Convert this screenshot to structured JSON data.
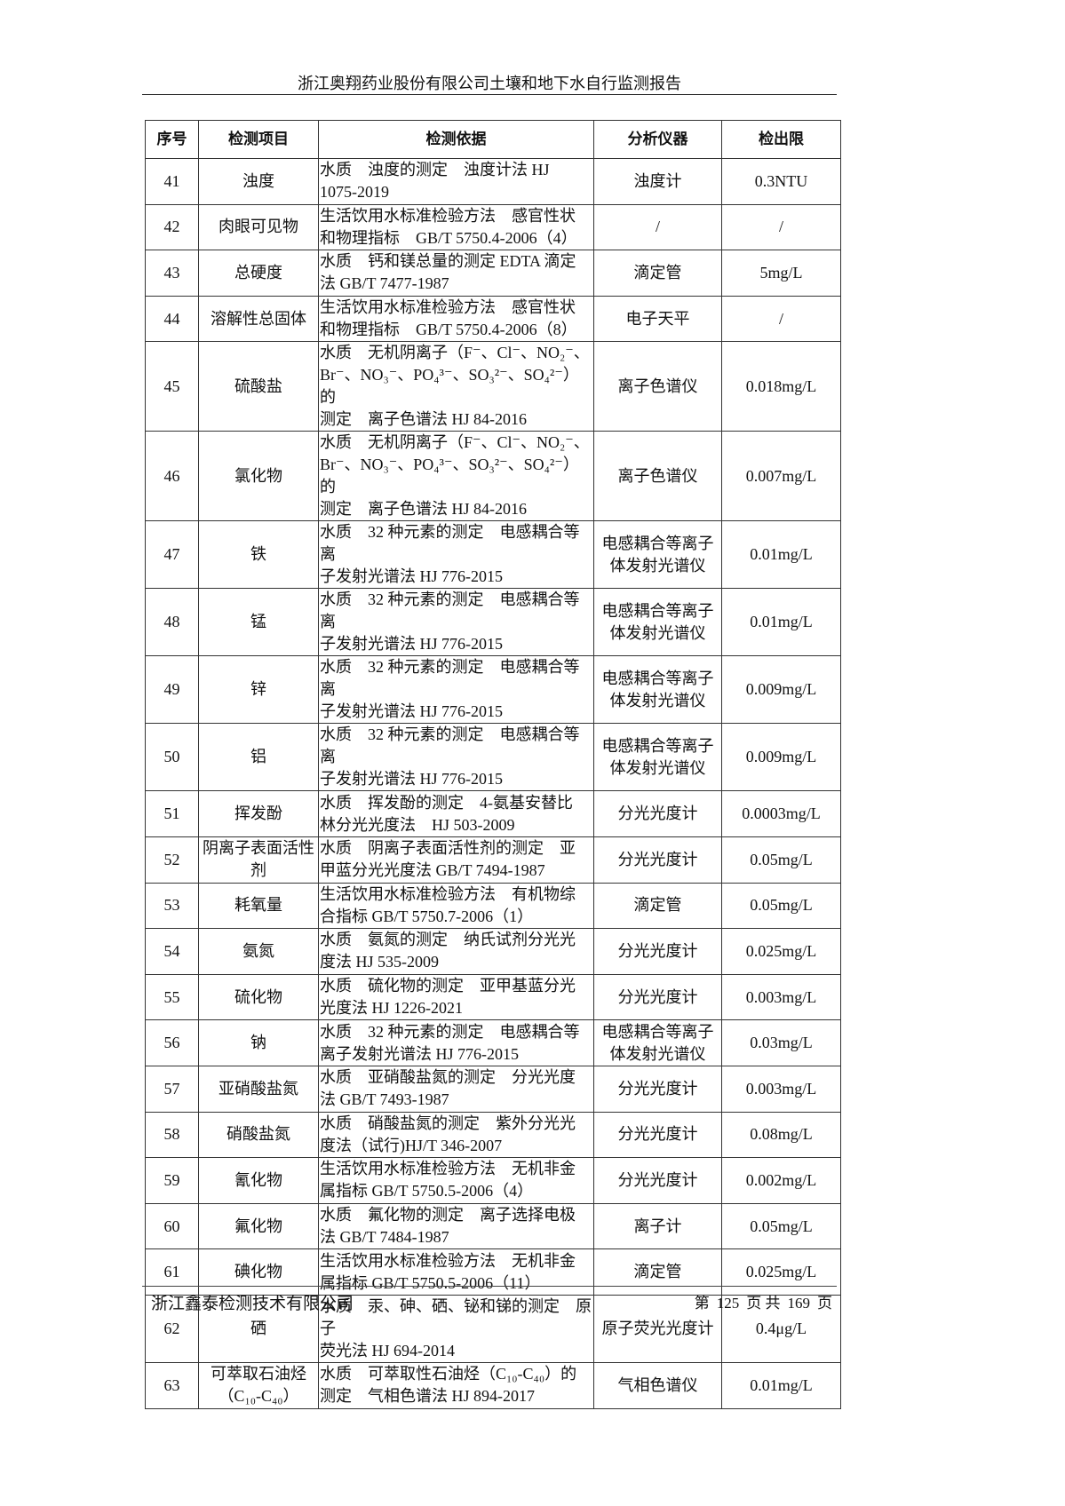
{
  "header": {
    "title": "浙江奥翔药业股份有限公司土壤和地下水自行监测报告"
  },
  "table": {
    "columns": [
      "序号",
      "检测项目",
      "检测依据",
      "分析仪器",
      "检出限"
    ],
    "rows": [
      {
        "no": "41",
        "item": "浊度",
        "method": [
          "水质　浊度的测定　浊度计法 HJ",
          "1075-2019"
        ],
        "instrument": "浊度计",
        "limit": "0.3NTU"
      },
      {
        "no": "42",
        "item": "肉眼可见物",
        "method": [
          "生活饮用水标准检验方法　感官性状",
          "和物理指标　GB/T 5750.4-2006（4）"
        ],
        "instrument": "/",
        "limit": "/"
      },
      {
        "no": "43",
        "item": "总硬度",
        "method": [
          "水质　钙和镁总量的测定 EDTA 滴定",
          "法 GB/T 7477-1987"
        ],
        "instrument": "滴定管",
        "limit": "5mg/L"
      },
      {
        "no": "44",
        "item": "溶解性总固体",
        "method": [
          "生活饮用水标准检验方法　感官性状",
          "和物理指标　GB/T 5750.4-2006（8）"
        ],
        "instrument": "电子天平",
        "limit": "/"
      },
      {
        "no": "45",
        "item": "硫酸盐",
        "method": [
          "水质　无机阴离子（F⁻、Cl⁻、NO₂⁻、",
          "Br⁻、NO₃⁻、PO₄³⁻、SO₃²⁻、SO₄²⁻）的",
          "测定　离子色谱法 HJ 84-2016"
        ],
        "instrument": "离子色谱仪",
        "limit": "0.018mg/L"
      },
      {
        "no": "46",
        "item": "氯化物",
        "method": [
          "水质　无机阴离子（F⁻、Cl⁻、NO₂⁻、",
          "Br⁻、NO₃⁻、PO₄³⁻、SO₃²⁻、SO₄²⁻）的",
          "测定　离子色谱法 HJ 84-2016"
        ],
        "instrument": "离子色谱仪",
        "limit": "0.007mg/L"
      },
      {
        "no": "47",
        "item": "铁",
        "method": [
          "水质　32 种元素的测定　电感耦合等离",
          "子发射光谱法 HJ 776-2015"
        ],
        "instrument": "电感耦合等离子体发射光谱仪",
        "limit": "0.01mg/L"
      },
      {
        "no": "48",
        "item": "锰",
        "method": [
          "水质　32 种元素的测定　电感耦合等离",
          "子发射光谱法 HJ 776-2015"
        ],
        "instrument": "电感耦合等离子体发射光谱仪",
        "limit": "0.01mg/L"
      },
      {
        "no": "49",
        "item": "锌",
        "method": [
          "水质　32 种元素的测定　电感耦合等离",
          "子发射光谱法 HJ 776-2015"
        ],
        "instrument": "电感耦合等离子体发射光谱仪",
        "limit": "0.009mg/L"
      },
      {
        "no": "50",
        "item": "铝",
        "method": [
          "水质　32 种元素的测定　电感耦合等离",
          "子发射光谱法 HJ 776-2015"
        ],
        "instrument": "电感耦合等离子体发射光谱仪",
        "limit": "0.009mg/L"
      },
      {
        "no": "51",
        "item": "挥发酚",
        "method": [
          "水质　挥发酚的测定　4-氨基安替比",
          "林分光光度法　HJ 503-2009"
        ],
        "instrument": "分光光度计",
        "limit": "0.0003mg/L"
      },
      {
        "no": "52",
        "item": "阴离子表面活性剂",
        "method": [
          "水质　阴离子表面活性剂的测定　亚",
          "甲蓝分光光度法 GB/T 7494-1987"
        ],
        "instrument": "分光光度计",
        "limit": "0.05mg/L"
      },
      {
        "no": "53",
        "item": "耗氧量",
        "method": [
          "生活饮用水标准检验方法　有机物综",
          "合指标 GB/T 5750.7-2006（1）"
        ],
        "instrument": "滴定管",
        "limit": "0.05mg/L"
      },
      {
        "no": "54",
        "item": "氨氮",
        "method": [
          "水质　氨氮的测定　纳氏试剂分光光",
          "度法 HJ 535-2009"
        ],
        "instrument": "分光光度计",
        "limit": "0.025mg/L"
      },
      {
        "no": "55",
        "item": "硫化物",
        "method": [
          "水质　硫化物的测定　亚甲基蓝分光",
          "光度法 HJ 1226-2021"
        ],
        "instrument": "分光光度计",
        "limit": "0.003mg/L"
      },
      {
        "no": "56",
        "item": "钠",
        "method": [
          "水质　32 种元素的测定　电感耦合等",
          "离子发射光谱法 HJ 776-2015"
        ],
        "instrument": "电感耦合等离子体发射光谱仪",
        "limit": "0.03mg/L"
      },
      {
        "no": "57",
        "item": "亚硝酸盐氮",
        "method": [
          "水质　亚硝酸盐氮的测定　分光光度",
          "法 GB/T 7493-1987"
        ],
        "instrument": "分光光度计",
        "limit": "0.003mg/L"
      },
      {
        "no": "58",
        "item": "硝酸盐氮",
        "method": [
          "水质　硝酸盐氮的测定　紫外分光光",
          "度法（试行)HJ/T 346-2007"
        ],
        "instrument": "分光光度计",
        "limit": "0.08mg/L"
      },
      {
        "no": "59",
        "item": "氰化物",
        "method": [
          "生活饮用水标准检验方法　无机非金",
          "属指标 GB/T 5750.5-2006（4）"
        ],
        "instrument": "分光光度计",
        "limit": "0.002mg/L"
      },
      {
        "no": "60",
        "item": "氟化物",
        "method": [
          "水质　氟化物的测定　离子选择电极",
          "法 GB/T 7484-1987"
        ],
        "instrument": "离子计",
        "limit": "0.05mg/L"
      },
      {
        "no": "61",
        "item": "碘化物",
        "method": [
          "生活饮用水标准检验方法　无机非金",
          "属指标 GB/T 5750.5-2006（11）"
        ],
        "instrument": "滴定管",
        "limit": "0.025mg/L"
      },
      {
        "no": "62",
        "item": "硒",
        "method": [
          "水质　汞、砷、硒、铋和锑的测定　原子",
          "荧光法 HJ 694-2014"
        ],
        "instrument": "原子荧光光度计",
        "limit": "0.4μg/L"
      },
      {
        "no": "63",
        "item": "可萃取石油烃（C₁₀-C₄₀）",
        "method": [
          "水质　可萃取性石油烃（C₁₀-C₄₀）的",
          "测定　气相色谱法 HJ 894-2017"
        ],
        "instrument": "气相色谱仪",
        "limit": "0.01mg/L"
      }
    ]
  },
  "footer": {
    "company": "浙江鑫泰检测技术有限公司",
    "page_prefix": "第",
    "page": "125",
    "page_mid": "页 共",
    "total": "169",
    "page_suffix": "页"
  }
}
